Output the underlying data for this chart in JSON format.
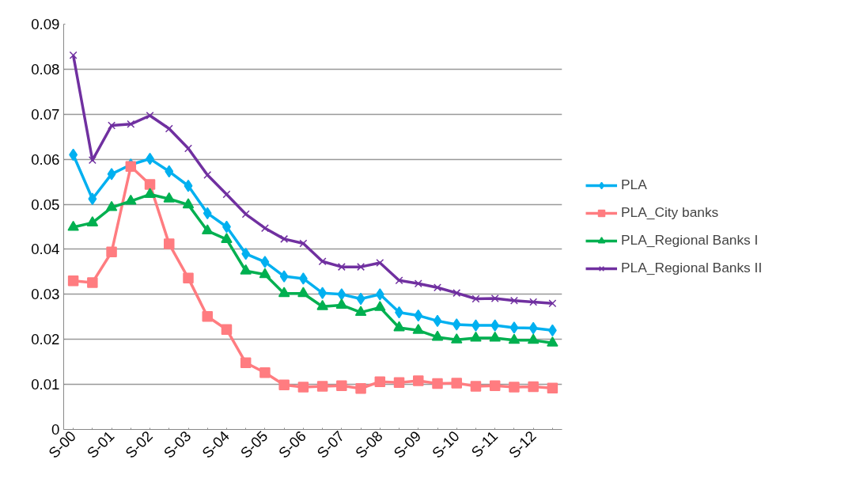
{
  "chart_data": {
    "type": "line",
    "categories": [
      "S-00",
      null,
      "S-01",
      null,
      "S-02",
      null,
      "S-03",
      null,
      "S-04",
      null,
      "S-05",
      null,
      "S-06",
      null,
      "S-07",
      null,
      "S-08",
      null,
      "S-09",
      null,
      "S-10",
      null,
      "S-11",
      null,
      "S-12",
      null
    ],
    "series": [
      {
        "name": "PLA",
        "color": "#00b0f0",
        "marker": "diamond",
        "values": [
          0.061,
          0.0512,
          0.0567,
          0.0588,
          0.0601,
          0.0573,
          0.0541,
          0.048,
          0.045,
          0.039,
          0.0372,
          0.034,
          0.0335,
          0.0303,
          0.03,
          0.029,
          0.03,
          0.026,
          0.0253,
          0.0241,
          0.0233,
          0.0231,
          0.0231,
          0.0226,
          0.0225,
          0.022
        ]
      },
      {
        "name": "PLA_City banks",
        "color": "#ff7c80",
        "marker": "square",
        "values": [
          0.033,
          0.0326,
          0.0394,
          0.0584,
          0.0544,
          0.0412,
          0.0336,
          0.0251,
          0.0222,
          0.0148,
          0.0126,
          0.0099,
          0.0094,
          0.0096,
          0.0097,
          0.0091,
          0.0106,
          0.0104,
          0.0108,
          0.0102,
          0.0103,
          0.0096,
          0.0097,
          0.0094,
          0.0095,
          0.0092
        ]
      },
      {
        "name": "PLA_Regional Banks I",
        "color": "#00b050",
        "marker": "triangle",
        "values": [
          0.0449,
          0.0459,
          0.0493,
          0.0507,
          0.0522,
          0.0512,
          0.0499,
          0.0441,
          0.0422,
          0.0352,
          0.0344,
          0.0302,
          0.0302,
          0.0273,
          0.0276,
          0.026,
          0.0271,
          0.0226,
          0.022,
          0.0205,
          0.0199,
          0.0203,
          0.0203,
          0.0198,
          0.0198,
          0.0192
        ]
      },
      {
        "name": "PLA_Regional Banks II",
        "color": "#7030a0",
        "marker": "cross",
        "values": [
          0.0831,
          0.0598,
          0.0675,
          0.0678,
          0.0697,
          0.0668,
          0.0624,
          0.0565,
          0.0522,
          0.0478,
          0.0447,
          0.0423,
          0.0413,
          0.0373,
          0.0361,
          0.0361,
          0.037,
          0.0331,
          0.0324,
          0.0315,
          0.0303,
          0.029,
          0.0291,
          0.0286,
          0.0283,
          0.028
        ]
      }
    ],
    "ylim": [
      0,
      0.09
    ],
    "yticks": [
      0,
      0.01,
      0.02,
      0.03,
      0.04,
      0.05,
      0.06,
      0.07,
      0.08,
      0.09
    ],
    "grid": "y",
    "legend": "right",
    "line_style": "solid"
  }
}
